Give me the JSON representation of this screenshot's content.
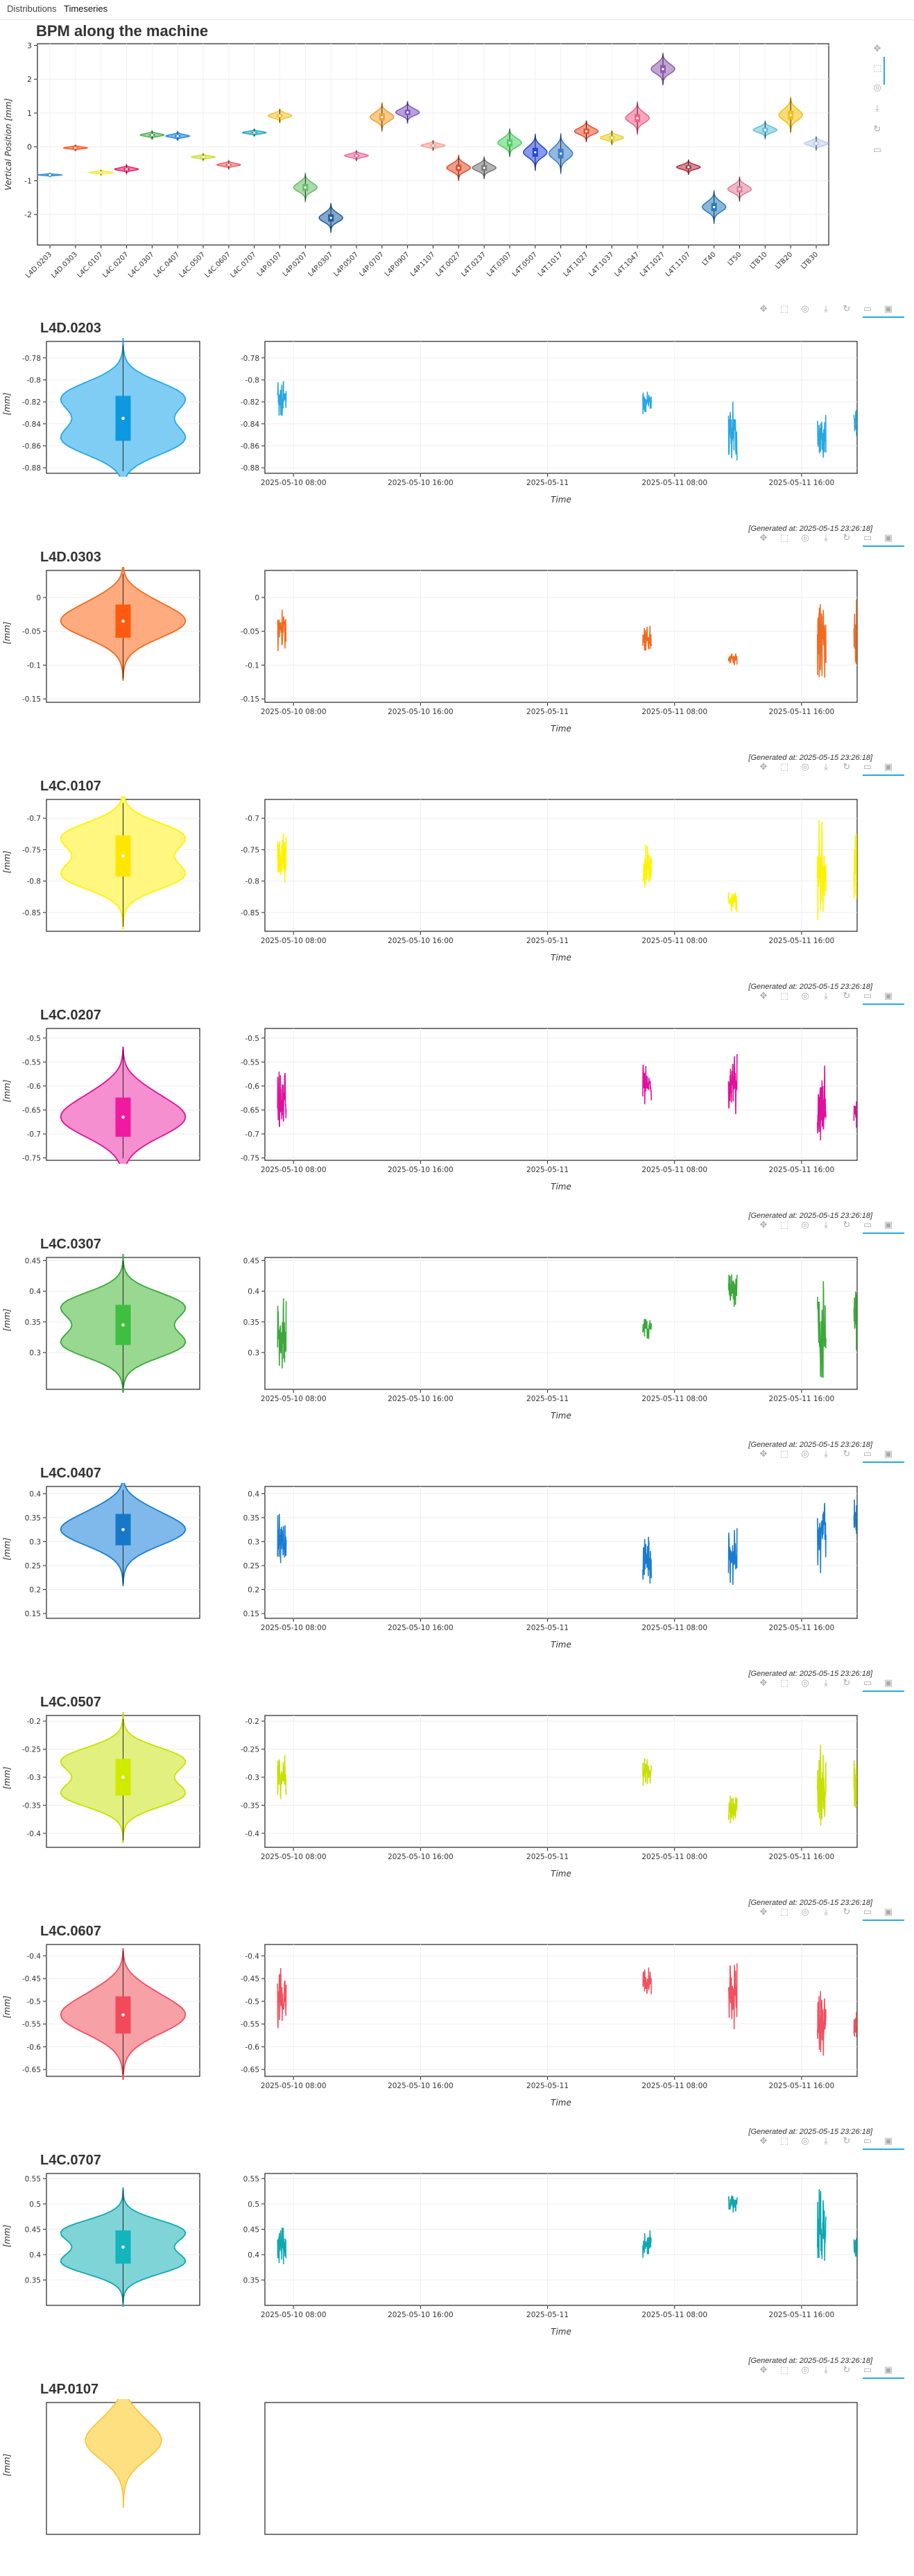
{
  "tabs": [
    "Distributions",
    "Timeseries"
  ],
  "active_tab": 1,
  "title": "BPM along the machine",
  "generated": "[Generated at: 2025-05-15 23:26:18]",
  "toolbar_icons": [
    "pan-icon",
    "box-zoom-icon",
    "wheel-zoom-icon",
    "save-icon",
    "reset-icon",
    "hover-icon",
    "help-icon"
  ],
  "chart_data": [
    {
      "type": "violin",
      "title": "BPM along the machine",
      "ylabel": "Vertical Position [mm]",
      "ylim": [
        -2.9,
        3.05
      ],
      "yticks": [
        -2,
        -1,
        0,
        1,
        2,
        3
      ],
      "categories": [
        "L4D.0203",
        "L4D.0303",
        "L4C.0107",
        "L4C.0207",
        "L4C.0307",
        "L4C.0407",
        "L4C.0507",
        "L4C.0607",
        "L4C.0707",
        "L4P.0107",
        "L4P.0207",
        "L4P.0307",
        "L4P.0507",
        "L4P.0707",
        "L4P.0907",
        "L4P.1107",
        "L4T.0027",
        "L4T.0237",
        "L4T.0307",
        "L4T.0507",
        "L4T.1017",
        "L4T.1027",
        "L4T.1037",
        "L4T.1047",
        "L4T.1027",
        "L4T.1107",
        "LT40",
        "LT50",
        "LTB10",
        "LTB20",
        "LTB30"
      ],
      "medians": [
        -0.83,
        -0.03,
        -0.76,
        -0.66,
        0.35,
        0.32,
        -0.3,
        -0.53,
        0.42,
        0.92,
        -1.2,
        -2.1,
        -0.26,
        0.88,
        1.02,
        0.04,
        -0.62,
        -0.62,
        0.12,
        -0.16,
        -0.2,
        0.46,
        0.27,
        0.85,
        2.3,
        -0.6,
        -1.78,
        -1.25,
        0.5,
        0.94,
        0.1
      ],
      "spreads": [
        0.05,
        0.08,
        0.08,
        0.12,
        0.12,
        0.12,
        0.1,
        0.12,
        0.1,
        0.2,
        0.4,
        0.4,
        0.15,
        0.4,
        0.3,
        0.15,
        0.35,
        0.3,
        0.4,
        0.5,
        0.55,
        0.3,
        0.2,
        0.45,
        0.45,
        0.2,
        0.45,
        0.35,
        0.25,
        0.5,
        0.2
      ],
      "widths": [
        0.35,
        0.35,
        0.3,
        0.35,
        0.35,
        0.35,
        0.3,
        0.3,
        0.3,
        0.35,
        0.3,
        0.3,
        0.3,
        0.3,
        0.3,
        0.3,
        0.3,
        0.3,
        0.3,
        0.35,
        0.3,
        0.3,
        0.3,
        0.3,
        0.3,
        0.3,
        0.35,
        0.3,
        0.3,
        0.3,
        0.3
      ],
      "colors": [
        "#3b8dd6",
        "#ff5722",
        "#ffeb3b",
        "#e91e63",
        "#4caf50",
        "#1e88e5",
        "#cddc39",
        "#f06060",
        "#26a6b8",
        "#fbc02d",
        "#66bb6a",
        "#1f5fa0",
        "#ec6aa0",
        "#f0a030",
        "#7e57c2",
        "#f8a090",
        "#e0502a",
        "#777777",
        "#4ccf60",
        "#2448d8",
        "#3b7ec8",
        "#e85030",
        "#e8d030",
        "#f06088",
        "#8e5cb0",
        "#b03040",
        "#2a7cb8",
        "#e08098",
        "#62c0d8",
        "#f2c010",
        "#b8d0e8"
      ]
    },
    {
      "type": "violin+line",
      "title": "L4D.0203",
      "ylabel": "[mm]",
      "ylim": [
        -0.885,
        -0.765
      ],
      "yticks": [
        -0.78,
        -0.8,
        -0.82,
        -0.84,
        -0.86,
        -0.88
      ],
      "median": -0.835,
      "spread": 0.025,
      "color": "#29a8e0",
      "fill": "#7fcdf5",
      "box": "#0d98e0",
      "xlabel": "Time",
      "xticks": [
        "2025-05-10 08:00",
        "2025-05-10 16:00",
        "2025-05-11",
        "2025-05-11 08:00",
        "2025-05-11 16:00"
      ],
      "xrange_hours": [
        6.2,
        43.5
      ],
      "bursts": [
        {
          "t": 7.0,
          "v": -0.817,
          "a": 0.02
        },
        {
          "t": 30.0,
          "v": -0.82,
          "a": 0.012
        },
        {
          "t": 35.4,
          "v": -0.848,
          "a": 0.03
        },
        {
          "t": 41.0,
          "v": -0.847,
          "a": 0.03
        },
        {
          "t": 43.3,
          "v": -0.84,
          "a": 0.015
        }
      ]
    },
    {
      "type": "violin+line",
      "title": "L4D.0303",
      "ylabel": "[mm]",
      "ylim": [
        -0.155,
        0.04
      ],
      "yticks": [
        0,
        -0.05,
        -0.1,
        -0.15
      ],
      "median": -0.035,
      "spread": 0.03,
      "color": "#f06b20",
      "fill": "#ffab80",
      "box": "#ff5a10",
      "xlabel": "Time",
      "xticks": [
        "2025-05-10 08:00",
        "2025-05-10 16:00",
        "2025-05-11",
        "2025-05-11 08:00",
        "2025-05-11 16:00"
      ],
      "xrange_hours": [
        6.2,
        43.5
      ],
      "bursts": [
        {
          "t": 7.0,
          "v": -0.045,
          "a": 0.04
        },
        {
          "t": 30.0,
          "v": -0.06,
          "a": 0.02
        },
        {
          "t": 35.4,
          "v": -0.09,
          "a": 0.01
        },
        {
          "t": 41.0,
          "v": -0.06,
          "a": 0.07
        },
        {
          "t": 43.3,
          "v": -0.06,
          "a": 0.06
        }
      ]
    },
    {
      "type": "violin+line",
      "title": "L4C.0107",
      "ylabel": "[mm]",
      "ylim": [
        -0.88,
        -0.67
      ],
      "yticks": [
        -0.7,
        -0.75,
        -0.8,
        -0.85
      ],
      "median": -0.76,
      "spread": 0.04,
      "color": "#fff200",
      "fill": "#fff780",
      "box": "#ffe600",
      "xlabel": "Time",
      "xticks": [
        "2025-05-10 08:00",
        "2025-05-10 16:00",
        "2025-05-11",
        "2025-05-11 08:00",
        "2025-05-11 16:00"
      ],
      "xrange_hours": [
        6.2,
        43.5
      ],
      "bursts": [
        {
          "t": 7.0,
          "v": -0.76,
          "a": 0.05
        },
        {
          "t": 30.0,
          "v": -0.78,
          "a": 0.04
        },
        {
          "t": 35.4,
          "v": -0.83,
          "a": 0.02
        },
        {
          "t": 41.0,
          "v": -0.78,
          "a": 0.09
        },
        {
          "t": 43.3,
          "v": -0.78,
          "a": 0.06
        }
      ]
    },
    {
      "type": "violin+line",
      "title": "L4C.0207",
      "ylabel": "[mm]",
      "ylim": [
        -0.755,
        -0.48
      ],
      "yticks": [
        -0.5,
        -0.55,
        -0.6,
        -0.65,
        -0.7,
        -0.75
      ],
      "median": -0.665,
      "spread": 0.05,
      "color": "#e0109b",
      "fill": "#f58fcf",
      "box": "#f01aa0",
      "xlabel": "Time",
      "xticks": [
        "2025-05-10 08:00",
        "2025-05-10 16:00",
        "2025-05-11",
        "2025-05-11 08:00",
        "2025-05-11 16:00"
      ],
      "xrange_hours": [
        6.2,
        43.5
      ],
      "bursts": [
        {
          "t": 7.0,
          "v": -0.63,
          "a": 0.08
        },
        {
          "t": 30.0,
          "v": -0.6,
          "a": 0.05
        },
        {
          "t": 35.4,
          "v": -0.6,
          "a": 0.07
        },
        {
          "t": 41.0,
          "v": -0.64,
          "a": 0.09
        },
        {
          "t": 43.3,
          "v": -0.66,
          "a": 0.03
        }
      ]
    },
    {
      "type": "violin+line",
      "title": "L4C.0307",
      "ylabel": "[mm]",
      "ylim": [
        0.24,
        0.455
      ],
      "yticks": [
        0.45,
        0.4,
        0.35,
        0.3
      ],
      "median": 0.345,
      "spread": 0.04,
      "color": "#3aa83a",
      "fill": "#98d890",
      "box": "#3fbf3f",
      "xlabel": "Time",
      "xticks": [
        "2025-05-10 08:00",
        "2025-05-10 16:00",
        "2025-05-11",
        "2025-05-11 08:00",
        "2025-05-11 16:00"
      ],
      "xrange_hours": [
        6.2,
        43.5
      ],
      "bursts": [
        {
          "t": 7.0,
          "v": 0.33,
          "a": 0.06
        },
        {
          "t": 30.0,
          "v": 0.34,
          "a": 0.02
        },
        {
          "t": 35.4,
          "v": 0.4,
          "a": 0.03
        },
        {
          "t": 41.0,
          "v": 0.34,
          "a": 0.09
        },
        {
          "t": 43.3,
          "v": 0.35,
          "a": 0.05
        }
      ]
    },
    {
      "type": "violin+line",
      "title": "L4C.0407",
      "ylabel": "[mm]",
      "ylim": [
        0.14,
        0.415
      ],
      "yticks": [
        0.4,
        0.35,
        0.3,
        0.25,
        0.2,
        0.15
      ],
      "median": 0.325,
      "spread": 0.04,
      "color": "#1a7cd0",
      "fill": "#7fb8ea",
      "box": "#1878c8",
      "xlabel": "Time",
      "xticks": [
        "2025-05-10 08:00",
        "2025-05-10 16:00",
        "2025-05-11",
        "2025-05-11 08:00",
        "2025-05-11 16:00"
      ],
      "xrange_hours": [
        6.2,
        43.5
      ],
      "bursts": [
        {
          "t": 7.0,
          "v": 0.3,
          "a": 0.06
        },
        {
          "t": 30.0,
          "v": 0.26,
          "a": 0.06
        },
        {
          "t": 35.4,
          "v": 0.27,
          "a": 0.07
        },
        {
          "t": 41.0,
          "v": 0.32,
          "a": 0.09
        },
        {
          "t": 43.3,
          "v": 0.35,
          "a": 0.04
        }
      ]
    },
    {
      "type": "violin+line",
      "title": "L4C.0507",
      "ylabel": "[mm]",
      "ylim": [
        -0.425,
        -0.19
      ],
      "yticks": [
        -0.2,
        -0.25,
        -0.3,
        -0.35,
        -0.4
      ],
      "median": -0.3,
      "spread": 0.04,
      "color": "#c8e000",
      "fill": "#e2f080",
      "box": "#d0ea00",
      "xlabel": "Time",
      "xticks": [
        "2025-05-10 08:00",
        "2025-05-10 16:00",
        "2025-05-11",
        "2025-05-11 08:00",
        "2025-05-11 16:00"
      ],
      "xrange_hours": [
        6.2,
        43.5
      ],
      "bursts": [
        {
          "t": 7.0,
          "v": -0.3,
          "a": 0.04
        },
        {
          "t": 30.0,
          "v": -0.29,
          "a": 0.03
        },
        {
          "t": 35.4,
          "v": -0.36,
          "a": 0.03
        },
        {
          "t": 41.0,
          "v": -0.33,
          "a": 0.09
        },
        {
          "t": 43.3,
          "v": -0.31,
          "a": 0.05
        }
      ]
    },
    {
      "type": "violin+line",
      "title": "L4C.0607",
      "ylabel": "[mm]",
      "ylim": [
        -0.665,
        -0.375
      ],
      "yticks": [
        -0.4,
        -0.45,
        -0.5,
        -0.55,
        -0.6,
        -0.65
      ],
      "median": -0.53,
      "spread": 0.05,
      "color": "#f05060",
      "fill": "#f7a0a6",
      "box": "#f24a5a",
      "xlabel": "Time",
      "xticks": [
        "2025-05-10 08:00",
        "2025-05-10 16:00",
        "2025-05-11",
        "2025-05-11 08:00",
        "2025-05-11 16:00"
      ],
      "xrange_hours": [
        6.2,
        43.5
      ],
      "bursts": [
        {
          "t": 7.0,
          "v": -0.49,
          "a": 0.08
        },
        {
          "t": 30.0,
          "v": -0.46,
          "a": 0.04
        },
        {
          "t": 35.4,
          "v": -0.48,
          "a": 0.09
        },
        {
          "t": 41.0,
          "v": -0.55,
          "a": 0.08
        },
        {
          "t": 43.3,
          "v": -0.55,
          "a": 0.04
        }
      ]
    },
    {
      "type": "violin+line",
      "title": "L4C.0707",
      "ylabel": "[mm]",
      "ylim": [
        0.3,
        0.56
      ],
      "yticks": [
        0.55,
        0.5,
        0.45,
        0.4,
        0.35
      ],
      "median": 0.415,
      "spread": 0.04,
      "color": "#10a8b0",
      "fill": "#7fd4d8",
      "box": "#14b4bc",
      "xlabel": "Time",
      "xticks": [
        "2025-05-10 08:00",
        "2025-05-10 16:00",
        "2025-05-11",
        "2025-05-11 08:00",
        "2025-05-11 16:00"
      ],
      "xrange_hours": [
        6.2,
        43.5
      ],
      "bursts": [
        {
          "t": 7.0,
          "v": 0.42,
          "a": 0.05
        },
        {
          "t": 30.0,
          "v": 0.42,
          "a": 0.03
        },
        {
          "t": 35.4,
          "v": 0.5,
          "a": 0.02
        },
        {
          "t": 41.0,
          "v": 0.45,
          "a": 0.09
        },
        {
          "t": 43.3,
          "v": 0.42,
          "a": 0.03
        }
      ]
    },
    {
      "type": "violin+line",
      "title": "L4P.0107",
      "ylabel": "[mm]",
      "color": "#fbc02d",
      "fill": "#fde080",
      "box": "#f8c020"
    }
  ]
}
